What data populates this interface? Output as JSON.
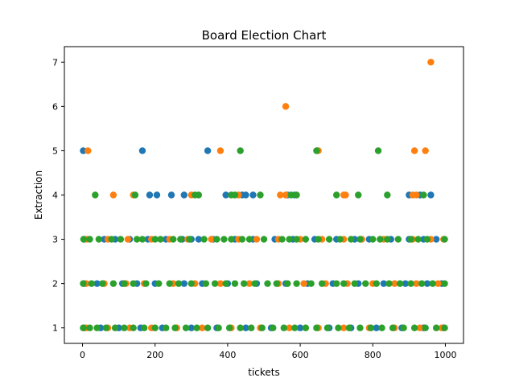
{
  "chart_data": {
    "type": "scatter",
    "title": "Board Election Chart",
    "xlabel": "tickets",
    "ylabel": "Extraction",
    "xlim": [
      -50,
      1050
    ],
    "ylim": [
      0.65,
      7.35
    ],
    "xticks": [
      0,
      200,
      400,
      600,
      800,
      1000
    ],
    "yticks": [
      1,
      2,
      3,
      4,
      5,
      6,
      7
    ],
    "grid": false,
    "legend": "none",
    "series": [
      {
        "color": "#1f77b4",
        "points": [
          [
            2,
            5
          ],
          [
            165,
            5
          ],
          [
            345,
            5
          ],
          [
            648,
            5
          ],
          [
            185,
            4
          ],
          [
            205,
            4
          ],
          [
            245,
            4
          ],
          [
            280,
            4
          ],
          [
            395,
            4
          ],
          [
            440,
            4
          ],
          [
            450,
            4
          ],
          [
            470,
            4
          ],
          [
            565,
            4
          ],
          [
            585,
            4
          ],
          [
            900,
            4
          ],
          [
            930,
            4
          ],
          [
            960,
            4
          ],
          [
            5,
            3
          ],
          [
            60,
            3
          ],
          [
            90,
            3
          ],
          [
            130,
            3
          ],
          [
            180,
            3
          ],
          [
            230,
            3
          ],
          [
            275,
            3
          ],
          [
            300,
            3
          ],
          [
            320,
            3
          ],
          [
            360,
            3
          ],
          [
            420,
            3
          ],
          [
            470,
            3
          ],
          [
            530,
            3
          ],
          [
            580,
            3
          ],
          [
            640,
            3
          ],
          [
            700,
            3
          ],
          [
            750,
            3
          ],
          [
            790,
            3
          ],
          [
            850,
            3
          ],
          [
            900,
            3
          ],
          [
            940,
            3
          ],
          [
            975,
            3
          ],
          [
            5,
            2
          ],
          [
            40,
            2
          ],
          [
            110,
            2
          ],
          [
            150,
            2
          ],
          [
            200,
            2
          ],
          [
            280,
            2
          ],
          [
            330,
            2
          ],
          [
            400,
            2
          ],
          [
            480,
            2
          ],
          [
            560,
            2
          ],
          [
            620,
            2
          ],
          [
            690,
            2
          ],
          [
            760,
            2
          ],
          [
            830,
            2
          ],
          [
            890,
            2
          ],
          [
            950,
            2
          ],
          [
            990,
            2
          ],
          [
            5,
            1
          ],
          [
            50,
            1
          ],
          [
            100,
            1
          ],
          [
            160,
            1
          ],
          [
            220,
            1
          ],
          [
            300,
            1
          ],
          [
            370,
            1
          ],
          [
            450,
            1
          ],
          [
            520,
            1
          ],
          [
            600,
            1
          ],
          [
            680,
            1
          ],
          [
            740,
            1
          ],
          [
            810,
            1
          ],
          [
            880,
            1
          ],
          [
            940,
            1
          ],
          [
            995,
            1
          ]
        ]
      },
      {
        "color": "#ff7f0e",
        "points": [
          [
            960,
            7
          ],
          [
            560,
            6
          ],
          [
            15,
            5
          ],
          [
            380,
            5
          ],
          [
            650,
            5
          ],
          [
            915,
            5
          ],
          [
            945,
            5
          ],
          [
            85,
            4
          ],
          [
            140,
            4
          ],
          [
            300,
            4
          ],
          [
            430,
            4
          ],
          [
            545,
            4
          ],
          [
            560,
            4
          ],
          [
            720,
            4
          ],
          [
            725,
            4
          ],
          [
            910,
            4
          ],
          [
            920,
            4
          ],
          [
            12,
            3
          ],
          [
            70,
            3
          ],
          [
            125,
            3
          ],
          [
            190,
            3
          ],
          [
            240,
            3
          ],
          [
            290,
            3
          ],
          [
            355,
            3
          ],
          [
            430,
            3
          ],
          [
            480,
            3
          ],
          [
            540,
            3
          ],
          [
            600,
            3
          ],
          [
            660,
            3
          ],
          [
            720,
            3
          ],
          [
            770,
            3
          ],
          [
            830,
            3
          ],
          [
            910,
            3
          ],
          [
            960,
            3
          ],
          [
            995,
            3
          ],
          [
            10,
            2
          ],
          [
            60,
            2
          ],
          [
            120,
            2
          ],
          [
            170,
            2
          ],
          [
            250,
            2
          ],
          [
            310,
            2
          ],
          [
            380,
            2
          ],
          [
            460,
            2
          ],
          [
            540,
            2
          ],
          [
            610,
            2
          ],
          [
            670,
            2
          ],
          [
            730,
            2
          ],
          [
            800,
            2
          ],
          [
            860,
            2
          ],
          [
            920,
            2
          ],
          [
            980,
            2
          ],
          [
            10,
            1
          ],
          [
            70,
            1
          ],
          [
            130,
            1
          ],
          [
            190,
            1
          ],
          [
            260,
            1
          ],
          [
            330,
            1
          ],
          [
            410,
            1
          ],
          [
            490,
            1
          ],
          [
            570,
            1
          ],
          [
            650,
            1
          ],
          [
            720,
            1
          ],
          [
            790,
            1
          ],
          [
            860,
            1
          ],
          [
            930,
            1
          ],
          [
            990,
            1
          ]
        ]
      },
      {
        "color": "#2ca02c",
        "points": [
          [
            435,
            5
          ],
          [
            645,
            5
          ],
          [
            815,
            5
          ],
          [
            35,
            4
          ],
          [
            145,
            4
          ],
          [
            310,
            4
          ],
          [
            320,
            4
          ],
          [
            410,
            4
          ],
          [
            420,
            4
          ],
          [
            490,
            4
          ],
          [
            575,
            4
          ],
          [
            590,
            4
          ],
          [
            700,
            4
          ],
          [
            760,
            4
          ],
          [
            840,
            4
          ],
          [
            940,
            4
          ],
          [
            3,
            3
          ],
          [
            20,
            3
          ],
          [
            45,
            3
          ],
          [
            80,
            3
          ],
          [
            105,
            3
          ],
          [
            150,
            3
          ],
          [
            165,
            3
          ],
          [
            200,
            3
          ],
          [
            215,
            3
          ],
          [
            250,
            3
          ],
          [
            270,
            3
          ],
          [
            295,
            3
          ],
          [
            335,
            3
          ],
          [
            370,
            3
          ],
          [
            390,
            3
          ],
          [
            410,
            3
          ],
          [
            440,
            3
          ],
          [
            460,
            3
          ],
          [
            500,
            3
          ],
          [
            550,
            3
          ],
          [
            570,
            3
          ],
          [
            590,
            3
          ],
          [
            615,
            3
          ],
          [
            650,
            3
          ],
          [
            680,
            3
          ],
          [
            710,
            3
          ],
          [
            740,
            3
          ],
          [
            765,
            3
          ],
          [
            800,
            3
          ],
          [
            820,
            3
          ],
          [
            840,
            3
          ],
          [
            870,
            3
          ],
          [
            905,
            3
          ],
          [
            925,
            3
          ],
          [
            950,
            3
          ],
          [
            998,
            3
          ],
          [
            2,
            2
          ],
          [
            25,
            2
          ],
          [
            55,
            2
          ],
          [
            85,
            2
          ],
          [
            115,
            2
          ],
          [
            140,
            2
          ],
          [
            175,
            2
          ],
          [
            210,
            2
          ],
          [
            240,
            2
          ],
          [
            265,
            2
          ],
          [
            300,
            2
          ],
          [
            340,
            2
          ],
          [
            365,
            2
          ],
          [
            395,
            2
          ],
          [
            420,
            2
          ],
          [
            445,
            2
          ],
          [
            475,
            2
          ],
          [
            510,
            2
          ],
          [
            535,
            2
          ],
          [
            565,
            2
          ],
          [
            590,
            2
          ],
          [
            630,
            2
          ],
          [
            660,
            2
          ],
          [
            700,
            2
          ],
          [
            720,
            2
          ],
          [
            750,
            2
          ],
          [
            780,
            2
          ],
          [
            810,
            2
          ],
          [
            845,
            2
          ],
          [
            875,
            2
          ],
          [
            905,
            2
          ],
          [
            935,
            2
          ],
          [
            965,
            2
          ],
          [
            998,
            2
          ],
          [
            2,
            1
          ],
          [
            20,
            1
          ],
          [
            40,
            1
          ],
          [
            65,
            1
          ],
          [
            90,
            1
          ],
          [
            115,
            1
          ],
          [
            140,
            1
          ],
          [
            170,
            1
          ],
          [
            200,
            1
          ],
          [
            230,
            1
          ],
          [
            255,
            1
          ],
          [
            285,
            1
          ],
          [
            315,
            1
          ],
          [
            345,
            1
          ],
          [
            375,
            1
          ],
          [
            405,
            1
          ],
          [
            435,
            1
          ],
          [
            465,
            1
          ],
          [
            495,
            1
          ],
          [
            525,
            1
          ],
          [
            555,
            1
          ],
          [
            585,
            1
          ],
          [
            615,
            1
          ],
          [
            645,
            1
          ],
          [
            675,
            1
          ],
          [
            705,
            1
          ],
          [
            735,
            1
          ],
          [
            765,
            1
          ],
          [
            795,
            1
          ],
          [
            825,
            1
          ],
          [
            855,
            1
          ],
          [
            885,
            1
          ],
          [
            915,
            1
          ],
          [
            945,
            1
          ],
          [
            975,
            1
          ],
          [
            998,
            1
          ]
        ]
      }
    ]
  }
}
